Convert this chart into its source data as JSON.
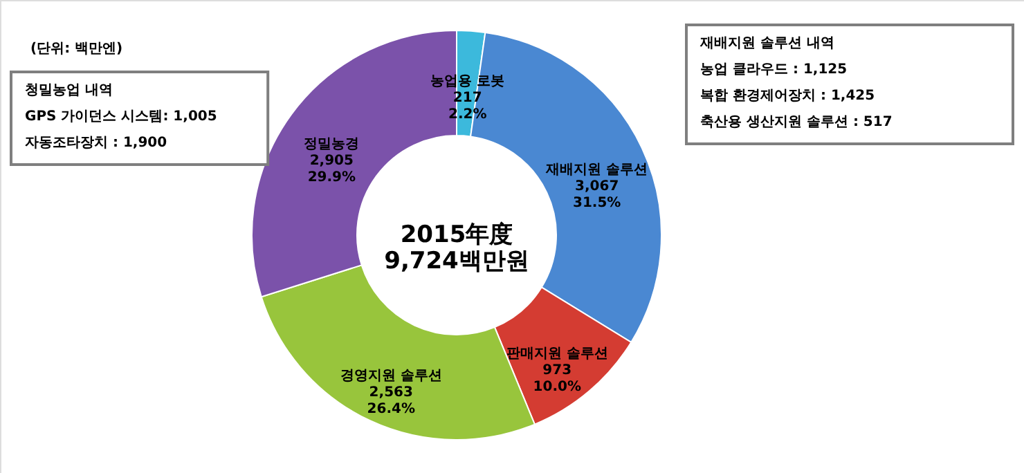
{
  "chart_data": {
    "type": "donut",
    "title": "2015年度\n9,724백만원",
    "categories": [
      "농업용 로봇",
      "재배지원 솔루션",
      "판매지원 솔루션",
      "경영지원 솔루션",
      "정밀농경"
    ],
    "values": [
      217,
      3067,
      973,
      2563,
      2905
    ],
    "colors": [
      "#3cb9dc",
      "#4a88d2",
      "#d43c32",
      "#98c53c",
      "#7b52aa"
    ],
    "value_labels": [
      "217\n2.2%",
      "3,067\n31.5%",
      "973\n10.0%",
      "2,563\n26.4%",
      "2,905\n29.9%"
    ],
    "annotations": [
      "(단위: 백만엔)",
      "청밀농업 내역\nGPS 가이던스 시스템: 1,005\n자동조타장치          : 1,900",
      "재배지원 솔루션 내역\n농업 클라우드                : 1,125\n복합 환경제어장치          : 1,425\n축산용 생산지원 솔루션   : 517"
    ]
  }
}
